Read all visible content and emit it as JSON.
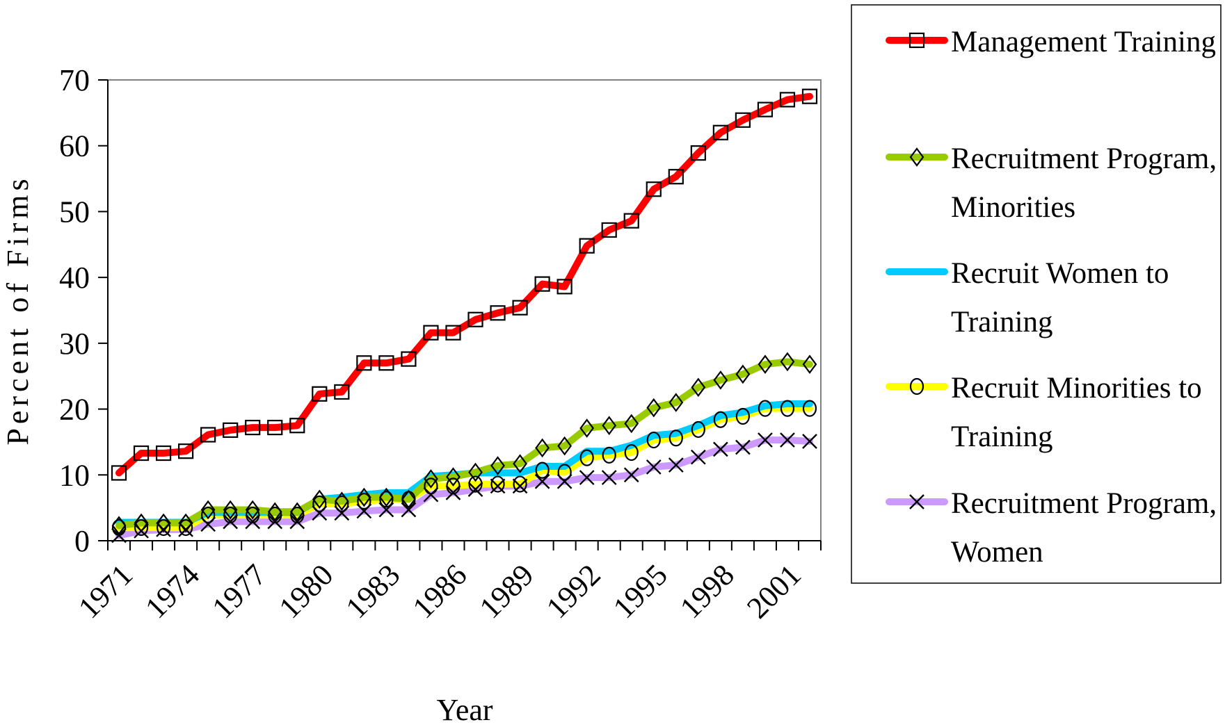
{
  "chart_data": {
    "type": "line",
    "title": "",
    "xlabel": "Year",
    "ylabel": "Percent of Firms",
    "ylim": [
      0,
      70
    ],
    "yticks": [
      0,
      10,
      20,
      30,
      40,
      50,
      60,
      70
    ],
    "xlim": [
      1971,
      2002
    ],
    "x": [
      1971,
      1972,
      1973,
      1974,
      1975,
      1976,
      1977,
      1978,
      1979,
      1980,
      1981,
      1982,
      1983,
      1984,
      1985,
      1986,
      1987,
      1988,
      1989,
      1990,
      1991,
      1992,
      1993,
      1994,
      1995,
      1996,
      1997,
      1998,
      1999,
      2000,
      2001,
      2002
    ],
    "x_tick_labels": [
      "1971",
      "1974",
      "1977",
      "1980",
      "1983",
      "1986",
      "1989",
      "1992",
      "1995",
      "1998",
      "2001"
    ],
    "grid": false,
    "legend_position": "right",
    "series": [
      {
        "name": "Management Training",
        "color": "#ff0000",
        "marker": "square",
        "values": [
          10.3,
          13.3,
          13.3,
          13.6,
          16.1,
          16.8,
          17.2,
          17.2,
          17.5,
          22.3,
          22.6,
          27.0,
          27.0,
          27.6,
          31.6,
          31.6,
          33.6,
          34.6,
          35.4,
          39.0,
          38.6,
          44.8,
          47.2,
          48.6,
          53.4,
          55.3,
          58.9,
          62.0,
          63.9,
          65.5,
          67.0,
          67.5
        ]
      },
      {
        "name": "Recruitment Program, Minorities",
        "color": "#99cc00",
        "marker": "diamond",
        "values": [
          2.3,
          2.7,
          2.7,
          2.7,
          4.7,
          4.7,
          4.7,
          4.4,
          4.4,
          6.3,
          6.0,
          6.6,
          6.6,
          6.3,
          9.4,
          9.7,
          10.4,
          11.4,
          11.7,
          14.1,
          14.4,
          17.1,
          17.5,
          17.8,
          20.2,
          21.0,
          23.3,
          24.4,
          25.3,
          26.8,
          27.2,
          26.8
        ]
      },
      {
        "name": "Recruit Women to Training",
        "color": "#00ccff",
        "marker": "none",
        "values": [
          2.8,
          2.8,
          2.8,
          2.8,
          4.3,
          4.3,
          4.3,
          4.3,
          4.3,
          6.3,
          6.6,
          7.0,
          7.3,
          7.3,
          9.8,
          10.0,
          10.3,
          10.3,
          10.3,
          11.3,
          11.3,
          13.6,
          13.6,
          14.5,
          16.0,
          16.3,
          17.5,
          19.0,
          19.5,
          20.5,
          20.8,
          20.8
        ]
      },
      {
        "name": "Recruit Minorities to Training",
        "color": "#ffff00",
        "marker": "circle",
        "values": [
          2.0,
          2.0,
          2.0,
          2.0,
          3.9,
          3.9,
          3.9,
          3.9,
          3.9,
          5.6,
          5.6,
          6.0,
          6.3,
          6.3,
          8.3,
          8.3,
          8.6,
          8.6,
          8.6,
          10.7,
          10.4,
          12.6,
          13.0,
          13.4,
          15.3,
          15.6,
          16.9,
          18.4,
          18.9,
          20.1,
          20.1,
          20.1
        ]
      },
      {
        "name": "Recruitment Program, Women",
        "color": "#cc99ff",
        "marker": "x",
        "values": [
          0.8,
          1.5,
          1.7,
          1.7,
          2.5,
          2.9,
          2.9,
          2.9,
          2.9,
          4.2,
          4.2,
          4.5,
          4.7,
          4.7,
          7.0,
          7.3,
          7.8,
          8.3,
          8.3,
          9.0,
          9.0,
          9.6,
          9.6,
          10.0,
          11.2,
          11.5,
          12.7,
          13.9,
          14.2,
          15.3,
          15.3,
          15.1
        ]
      }
    ]
  }
}
